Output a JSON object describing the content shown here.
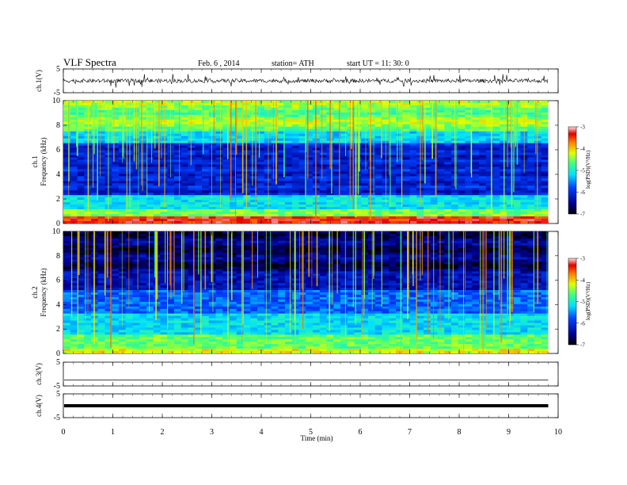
{
  "header": {
    "title": "VLF  Spectra",
    "date": "Feb. 6  , 2014",
    "station": "station= ATH",
    "start": "start  UT  =    11: 30: 0"
  },
  "chart_data": [
    {
      "type": "line",
      "panel": "ch1_waveform",
      "ylabel": "ch.1(V)",
      "ylim": [
        -5,
        5
      ],
      "yticks": [
        "5",
        "-5"
      ],
      "x_range_min": [
        0,
        9.8
      ],
      "color": "#000000"
    },
    {
      "type": "heatmap",
      "panel": "ch1_spectrogram",
      "ylabel_channel": "ch.1",
      "ylabel": "Frequency  (kHz)",
      "ylim": [
        0,
        10
      ],
      "yticks": [
        "0",
        "2",
        "4",
        "6",
        "8",
        "10"
      ],
      "x_range_min": [
        0,
        9.8
      ],
      "colorbar": {
        "label": "log(PSD)(V²/Hz)",
        "range": [
          -7,
          -3
        ],
        "ticks": [
          "-3",
          "-4",
          "-5",
          "-6",
          "-7"
        ]
      }
    },
    {
      "type": "heatmap",
      "panel": "ch2_spectrogram",
      "ylabel_channel": "ch.2",
      "ylabel": "Frequency  (kHz)",
      "ylim": [
        0,
        10
      ],
      "yticks": [
        "0",
        "2",
        "4",
        "6",
        "8",
        "10"
      ],
      "x_range_min": [
        0,
        9.8
      ],
      "colorbar": {
        "label": "log(PSD)(V²/Hz)",
        "range": [
          -7,
          -3
        ],
        "ticks": [
          "-3",
          "-4",
          "-5",
          "-6",
          "-7"
        ]
      }
    },
    {
      "type": "line",
      "panel": "ch3_waveform",
      "ylabel": "ch.3(V)",
      "ylim": [
        -5,
        5
      ],
      "yticks": [
        "5",
        "-5"
      ],
      "value": -2.5
    },
    {
      "type": "line",
      "panel": "ch4_waveform",
      "ylabel": "ch.4(V)",
      "ylim": [
        -5,
        5
      ],
      "yticks": [
        "5",
        "-5"
      ],
      "value": 0
    }
  ],
  "x_axis": {
    "label": "Time  (min)",
    "ticks": [
      "0",
      "1",
      "2",
      "3",
      "4",
      "5",
      "6",
      "7",
      "8",
      "9",
      "10"
    ],
    "xlim": [
      0,
      10
    ]
  }
}
